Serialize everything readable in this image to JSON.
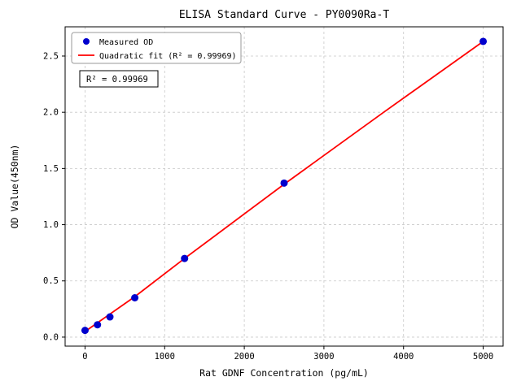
{
  "chart_data": {
    "type": "scatter",
    "title": "ELISA Standard Curve - PY0090Ra-T",
    "xlabel": "Rat GDNF Concentration (pg/mL)",
    "ylabel": "OD Value(450nm)",
    "xlim": [
      -250,
      5250
    ],
    "ylim": [
      -0.08,
      2.76
    ],
    "x_ticks": [
      0,
      1000,
      2000,
      3000,
      4000,
      5000
    ],
    "y_ticks": [
      0.0,
      0.5,
      1.0,
      1.5,
      2.0,
      2.5
    ],
    "grid": true,
    "grid_style": "dashed",
    "legend_position": "upper-left",
    "annotation": "R² = 0.99969",
    "colors": {
      "points": "#0000cd",
      "fit_line": "#ff0000",
      "grid": "#c8c8c8",
      "axis": "#000000",
      "legend_border": "#999999"
    },
    "series": [
      {
        "name": "Measured OD",
        "kind": "scatter",
        "color": "#0000cd",
        "x": [
          0,
          156.25,
          312.5,
          625,
          1250,
          2500,
          5000
        ],
        "y": [
          0.06,
          0.11,
          0.18,
          0.35,
          0.7,
          1.37,
          2.63
        ]
      },
      {
        "name": "Quadratic fit (R² = 0.99969)",
        "kind": "line",
        "color": "#ff0000",
        "x": [
          0,
          625,
          1250,
          2500,
          3750,
          5000
        ],
        "y": [
          0.05,
          0.36,
          0.7,
          1.36,
          2.0,
          2.63
        ]
      }
    ]
  }
}
